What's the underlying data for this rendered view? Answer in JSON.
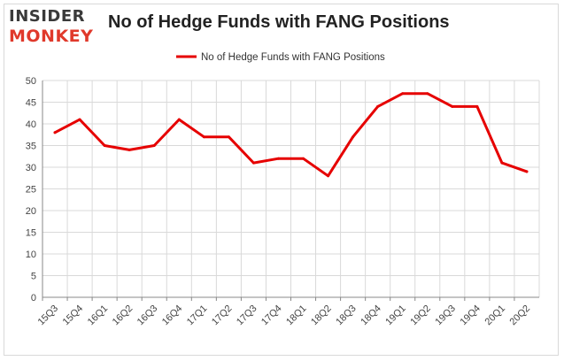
{
  "logo": {
    "line1": "INSIDER",
    "line2": "MONKEY"
  },
  "chart_data": {
    "type": "line",
    "title": "No of Hedge Funds with FANG Positions",
    "legend_position": "top",
    "grid": true,
    "ylim": [
      0,
      50
    ],
    "yticks": [
      0,
      5,
      10,
      15,
      20,
      25,
      30,
      35,
      40,
      45,
      50
    ],
    "categories": [
      "15Q3",
      "15Q4",
      "16Q1",
      "16Q2",
      "16Q3",
      "16Q4",
      "17Q1",
      "17Q2",
      "17Q3",
      "17Q4",
      "18Q1",
      "18Q2",
      "18Q3",
      "18Q4",
      "19Q1",
      "19Q2",
      "19Q3",
      "19Q4",
      "20Q1",
      "20Q2"
    ],
    "series": [
      {
        "name": "No of Hedge Funds with FANG Positions",
        "color": "#e60000",
        "values": [
          38,
          41,
          35,
          34,
          35,
          41,
          37,
          37,
          31,
          32,
          32,
          28,
          37,
          44,
          47,
          47,
          44,
          44,
          31,
          29
        ]
      }
    ]
  }
}
